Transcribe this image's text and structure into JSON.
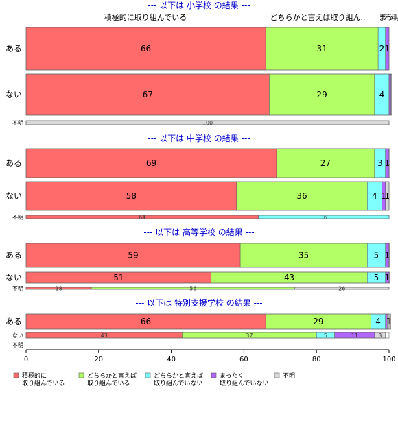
{
  "chart_data": {
    "type": "bar",
    "orientation": "horizontal-stacked-percent",
    "xlim": [
      0,
      100
    ],
    "xticks": [
      0,
      20,
      40,
      60,
      80,
      100
    ],
    "categories_legend": [
      {
        "name": "積極的に\n取り組んでいる",
        "color": "#ff6b6b"
      },
      {
        "name": "どちらかと言えば\n取り組んでいる",
        "color": "#b3ff66"
      },
      {
        "name": "どちらかと言えば\n取り組んでいない",
        "color": "#80ffff"
      },
      {
        "name": "まったく\n取り組んでいない",
        "color": "#b366ff"
      },
      {
        "name": "不明",
        "color": "#d9d9d9"
      }
    ],
    "top_labels": [
      "積極的に取り組んでいる",
      "どちらかと言えば取り組ん..",
      "まっ..",
      "不明"
    ],
    "panels": [
      {
        "title": "--- 以下は 小学校 の結果 ---",
        "rows": [
          {
            "label": "ある",
            "values": [
              66,
              31,
              2,
              1,
              0
            ],
            "labels": [
              "66",
              "31",
              "2",
              "1",
              ""
            ]
          },
          {
            "label": "ない",
            "values": [
              67,
              29,
              4,
              0.5,
              0.2
            ],
            "labels": [
              "67",
              "29",
              "4",
              "",
              ""
            ]
          },
          {
            "label": "不明",
            "values": [
              0,
              0,
              0,
              0,
              100
            ],
            "labels": [
              "",
              "",
              "",
              "",
              "100"
            ]
          }
        ]
      },
      {
        "title": "--- 以下は 中学校 の結果 ---",
        "rows": [
          {
            "label": "ある",
            "values": [
              69,
              27,
              3,
              1,
              0.3
            ],
            "labels": [
              "69",
              "27",
              "3",
              "1",
              ""
            ]
          },
          {
            "label": "ない",
            "values": [
              58,
              36,
              4,
              1,
              1
            ],
            "labels": [
              "58",
              "36",
              "4",
              "1",
              "1"
            ]
          },
          {
            "label": "不明",
            "values": [
              64,
              0,
              36,
              0,
              0
            ],
            "labels": [
              "64",
              "",
              "36",
              "",
              ""
            ]
          }
        ]
      },
      {
        "title": "--- 以下は 高等学校 の結果 ---",
        "rows": [
          {
            "label": "ある",
            "values": [
              59,
              35,
              5,
              1,
              0.2
            ],
            "labels": [
              "59",
              "35",
              "5",
              "1",
              ""
            ]
          },
          {
            "label": "ない",
            "values": [
              51,
              43,
              5,
              1,
              0.2
            ],
            "labels": [
              "51",
              "43",
              "5",
              "1",
              ""
            ]
          },
          {
            "label": "不明",
            "values": [
              18,
              56,
              0,
              0,
              26
            ],
            "labels": [
              "18",
              "56",
              "",
              "",
              "26"
            ]
          }
        ]
      },
      {
        "title": "--- 以下は 特別支援学校 の結果 ---",
        "rows": [
          {
            "label": "ある",
            "values": [
              66,
              29,
              4,
              0.5,
              1
            ],
            "labels": [
              "66",
              "29",
              "4",
              "",
              "1"
            ]
          },
          {
            "label": "ない",
            "values": [
              43,
              37,
              5,
              11,
              3
            ],
            "labels": [
              "43",
              "37",
              "5",
              "11",
              "3"
            ]
          },
          {
            "label": "不明",
            "values": [
              0,
              0,
              0,
              0,
              0
            ],
            "labels": [
              "",
              "",
              "",
              "",
              ""
            ]
          }
        ]
      }
    ]
  }
}
